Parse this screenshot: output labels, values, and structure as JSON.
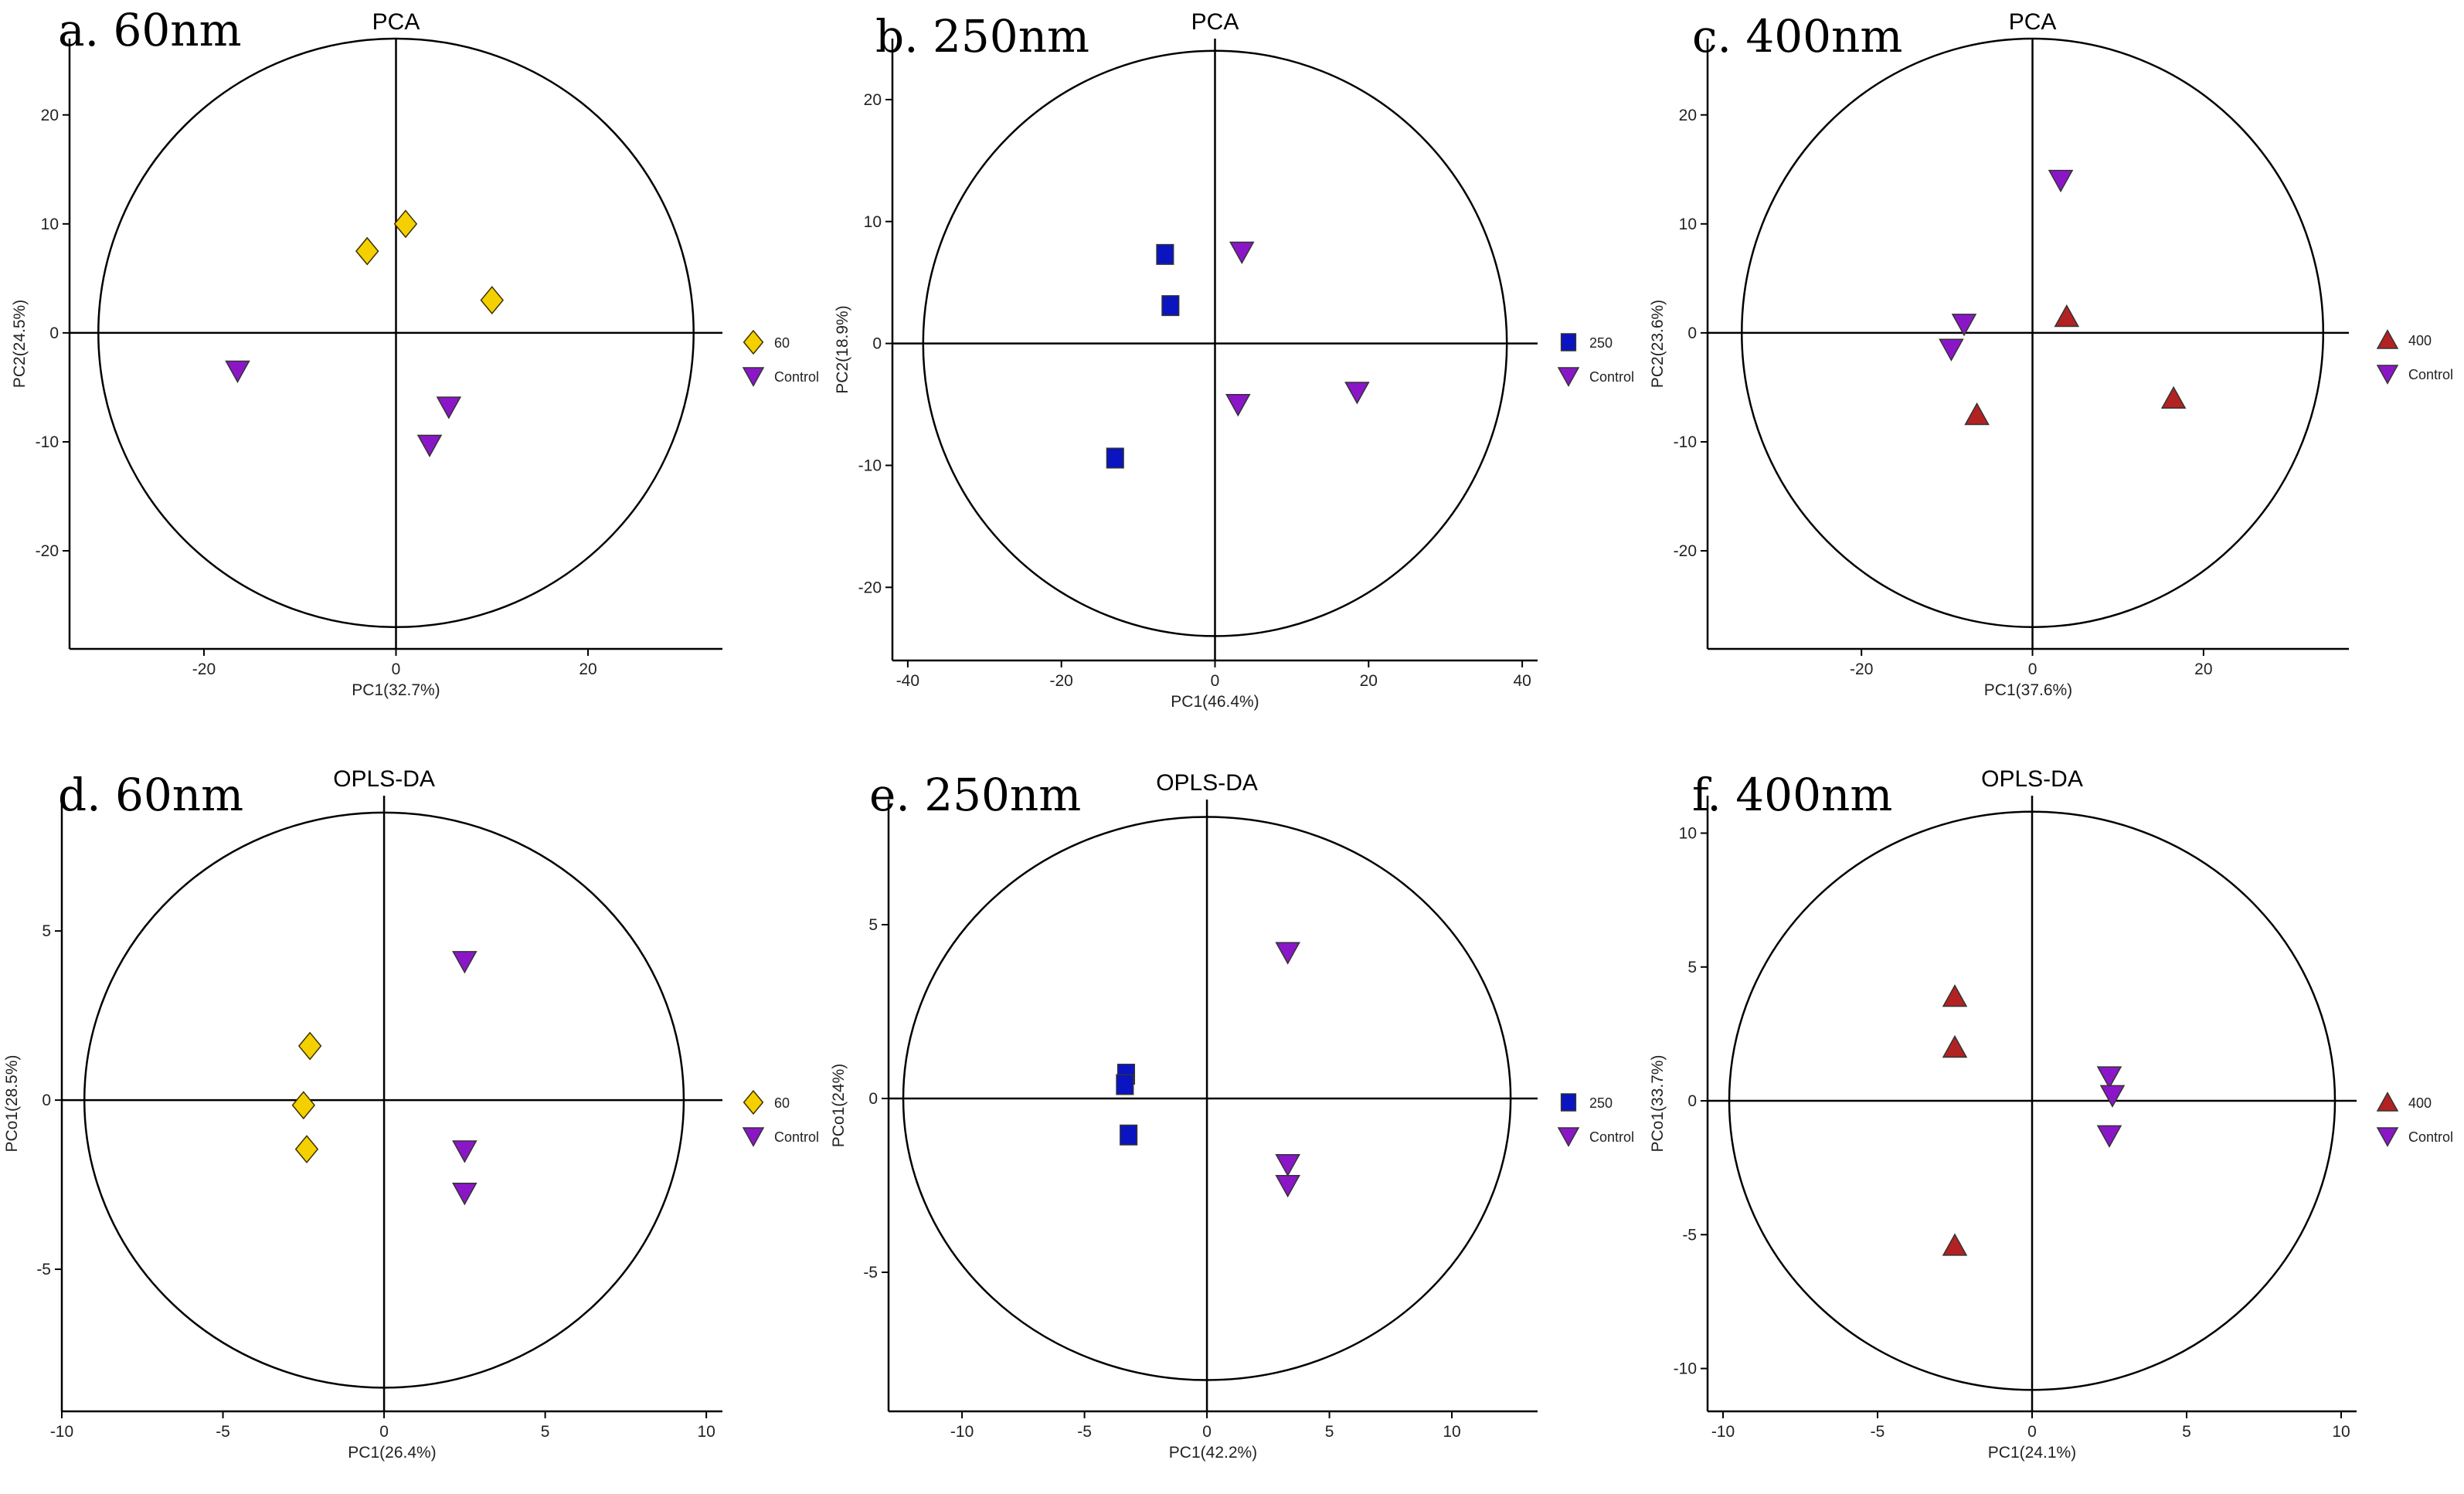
{
  "colors": {
    "gold": "#f5d000",
    "purple": "#8b16c8",
    "blue": "#0a14c0",
    "red": "#b22222",
    "ellipse": "#000000"
  },
  "chart_data": [
    {
      "panel_label": "a. 60nm",
      "type": "scatter",
      "title": "PCA",
      "xlabel": "PC1(32.7%)",
      "ylabel": "PC2(24.5%)",
      "xlim": [
        -34,
        34
      ],
      "ylim": [
        -29,
        27
      ],
      "xticks": [
        -20,
        0,
        20
      ],
      "yticks": [
        -20,
        -10,
        0,
        10,
        20
      ],
      "ellipse": {
        "cx": 0,
        "cy": 0,
        "rx": 31,
        "ry": 27
      },
      "legend": [
        "60",
        "Control"
      ],
      "series": [
        {
          "name": "60",
          "marker": "diamond",
          "color": "gold",
          "points": [
            [
              -3,
              7.5
            ],
            [
              1,
              10
            ],
            [
              10,
              3
            ]
          ]
        },
        {
          "name": "Control",
          "marker": "triangle-down",
          "color": "purple",
          "points": [
            [
              -16.5,
              -3.5
            ],
            [
              5.5,
              -6.8
            ],
            [
              3.5,
              -10.3
            ]
          ]
        }
      ]
    },
    {
      "panel_label": "b. 250nm",
      "type": "scatter",
      "title": "PCA",
      "xlabel": "PC1(46.4%)",
      "ylabel": "PC2(18.9%)",
      "xlim": [
        -42,
        42
      ],
      "ylim": [
        -26,
        25
      ],
      "xticks": [
        -40,
        -20,
        0,
        20,
        40
      ],
      "yticks": [
        -20,
        -10,
        0,
        10,
        20
      ],
      "ellipse": {
        "cx": 0,
        "cy": 0,
        "rx": 38,
        "ry": 24
      },
      "legend": [
        "250",
        "Control"
      ],
      "series": [
        {
          "name": "250",
          "marker": "square",
          "color": "blue",
          "points": [
            [
              -6.5,
              7.3
            ],
            [
              -5.8,
              3.1
            ],
            [
              -13,
              -9.4
            ]
          ]
        },
        {
          "name": "Control",
          "marker": "triangle-down",
          "color": "purple",
          "points": [
            [
              3.5,
              7.5
            ],
            [
              3,
              -5
            ],
            [
              18.5,
              -4
            ]
          ]
        }
      ]
    },
    {
      "panel_label": "c. 400nm",
      "type": "scatter",
      "title": "PCA",
      "xlabel": "PC1(37.6%)",
      "ylabel": "PC2(23.6%)",
      "xlim": [
        -38,
        37
      ],
      "ylim": [
        -29,
        27
      ],
      "xticks": [
        -20,
        0,
        20
      ],
      "yticks": [
        -20,
        -10,
        0,
        10,
        20
      ],
      "ellipse": {
        "cx": 0,
        "cy": 0,
        "rx": 34,
        "ry": 27
      },
      "legend": [
        "400",
        "Control"
      ],
      "series": [
        {
          "name": "400",
          "marker": "triangle-up",
          "color": "red",
          "points": [
            [
              4,
              1.5
            ],
            [
              -6.5,
              -7.5
            ],
            [
              16.5,
              -6
            ]
          ]
        },
        {
          "name": "Control",
          "marker": "triangle-down",
          "color": "purple",
          "points": [
            [
              3.3,
              14
            ],
            [
              -8,
              0.8
            ],
            [
              -9.5,
              -1.5
            ]
          ]
        }
      ]
    },
    {
      "panel_label": "d. 60nm",
      "type": "scatter",
      "title": "OPLS-DA",
      "xlabel": "PC1(26.4%)",
      "ylabel": "PCo1(28.5%)",
      "xlim": [
        -10,
        10.5
      ],
      "ylim": [
        -9.2,
        9
      ],
      "xticks": [
        -10,
        -5,
        0,
        5,
        10
      ],
      "yticks": [
        -5,
        0,
        5
      ],
      "ellipse": {
        "cx": 0,
        "cy": 0,
        "rx": 9.3,
        "ry": 8.5
      },
      "legend": [
        "60",
        "Control"
      ],
      "series": [
        {
          "name": "60",
          "marker": "diamond",
          "color": "gold",
          "points": [
            [
              -2.3,
              1.6
            ],
            [
              -2.5,
              -0.15
            ],
            [
              -2.4,
              -1.45
            ]
          ]
        },
        {
          "name": "Control",
          "marker": "triangle-down",
          "color": "purple",
          "points": [
            [
              2.5,
              4.1
            ],
            [
              2.5,
              -1.5
            ],
            [
              2.5,
              -2.75
            ]
          ]
        }
      ]
    },
    {
      "panel_label": "e. 250nm",
      "type": "scatter",
      "title": "OPLS-DA",
      "xlabel": "PC1(42.2%)",
      "ylabel": "PCo1(24%)",
      "xlim": [
        -13,
        13.5
      ],
      "ylim": [
        -9,
        8.6
      ],
      "xticks": [
        -10,
        -5,
        0,
        5,
        10
      ],
      "yticks": [
        -5,
        0,
        5
      ],
      "ellipse": {
        "cx": 0,
        "cy": 0,
        "rx": 12.4,
        "ry": 8.1
      },
      "legend": [
        "250",
        "Control"
      ],
      "series": [
        {
          "name": "250",
          "marker": "square",
          "color": "blue",
          "points": [
            [
              -3.3,
              0.7
            ],
            [
              -3.35,
              0.4
            ],
            [
              -3.2,
              -1.05
            ]
          ]
        },
        {
          "name": "Control",
          "marker": "triangle-down",
          "color": "purple",
          "points": [
            [
              3.3,
              4.2
            ],
            [
              3.3,
              -1.9
            ],
            [
              3.3,
              -2.5
            ]
          ]
        }
      ]
    },
    {
      "panel_label": "f. 400nm",
      "type": "scatter",
      "title": "OPLS-DA",
      "xlabel": "PC1(24.1%)",
      "ylabel": "PCo1(33.7%)",
      "xlim": [
        -10.5,
        10.5
      ],
      "ylim": [
        -11.6,
        11.4
      ],
      "xticks": [
        -10,
        -5,
        0,
        5,
        10
      ],
      "yticks": [
        -10,
        -5,
        0,
        5,
        10
      ],
      "ellipse": {
        "cx": 0,
        "cy": 0,
        "rx": 9.8,
        "ry": 10.8
      },
      "legend": [
        "400",
        "Control"
      ],
      "series": [
        {
          "name": "400",
          "marker": "triangle-up",
          "color": "red",
          "points": [
            [
              -2.5,
              3.9
            ],
            [
              -2.5,
              2
            ],
            [
              -2.5,
              -5.4
            ]
          ]
        },
        {
          "name": "Control",
          "marker": "triangle-down",
          "color": "purple",
          "points": [
            [
              2.5,
              0.9
            ],
            [
              2.6,
              0.2
            ],
            [
              2.5,
              -1.3
            ]
          ]
        }
      ]
    }
  ]
}
